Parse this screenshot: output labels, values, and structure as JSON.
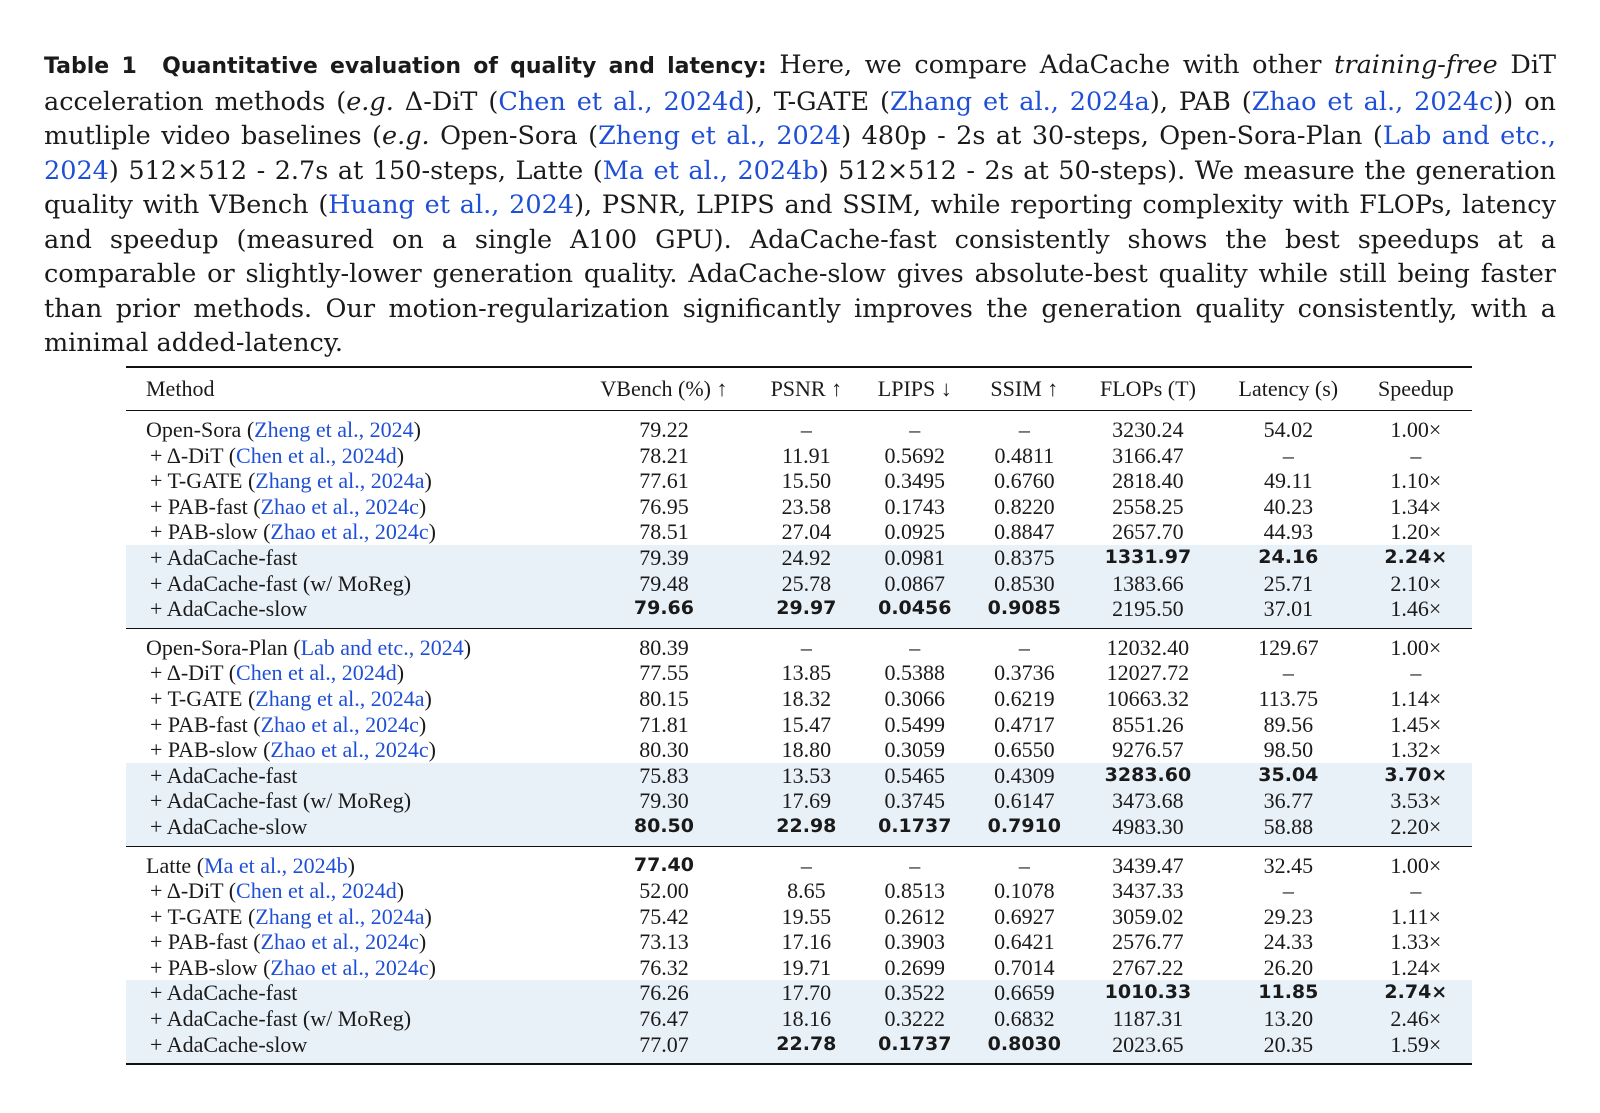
{
  "caption": {
    "label": "Table 1",
    "title": "Quantitative evaluation of quality and latency:",
    "text_1": " Here, we compare AdaCache with other ",
    "italic_1": "training-free",
    "text_2": " DiT acceleration methods (",
    "italic_2": "e.g.",
    "text_3": " Δ-DiT (",
    "cite_1": "Chen et al., 2024d",
    "text_4": "), T-GATE (",
    "cite_2": "Zhang et al., 2024a",
    "text_5": "), PAB (",
    "cite_3": "Zhao et al., 2024c",
    "text_6": ")) on mutliple video baselines (",
    "italic_3": "e.g.",
    "text_7": " Open-Sora (",
    "cite_4": "Zheng et al., 2024",
    "text_8": ") 480p - 2s at 30-steps, Open-Sora-Plan (",
    "cite_5": "Lab and etc., 2024",
    "text_9": ") 512×512 - 2.7s at 150-steps, Latte (",
    "cite_6": "Ma et al., 2024b",
    "text_10": ") 512×512 - 2s at 50-steps). We measure the generation quality with VBench (",
    "cite_7": "Huang et al., 2024",
    "text_11": "), PSNR, LPIPS and SSIM, while reporting complexity with FLOPs, latency and speedup (measured on a single A100 GPU). AdaCache-fast consistently shows the best speedups at a comparable or slightly-lower generation quality. AdaCache-slow gives absolute-best quality while still being faster than prior methods. Our motion-regularization significantly improves the generation quality consistently, with a minimal added-latency."
  },
  "table": {
    "headers": [
      "Method",
      "VBench (%) ↑",
      "PSNR ↑",
      "LPIPS ↓",
      "SSIM ↑",
      "FLOPs (T)",
      "Latency (s)",
      "Speedup"
    ],
    "groups": [
      {
        "rows": [
          {
            "name": "Open-Sora",
            "cite": "Zheng et al., 2024",
            "vbench": "79.22",
            "psnr": "–",
            "lpips": "–",
            "ssim": "–",
            "flops": "3230.24",
            "latency": "54.02",
            "speedup": "1.00×"
          },
          {
            "name": "+ Δ-DiT",
            "cite": "Chen et al., 2024d",
            "vbench": "78.21",
            "psnr": "11.91",
            "lpips": "0.5692",
            "ssim": "0.4811",
            "flops": "3166.47",
            "latency": "–",
            "speedup": "–"
          },
          {
            "name": "+ T-GATE",
            "cite": "Zhang et al., 2024a",
            "vbench": "77.61",
            "psnr": "15.50",
            "lpips": "0.3495",
            "ssim": "0.6760",
            "flops": "2818.40",
            "latency": "49.11",
            "speedup": "1.10×"
          },
          {
            "name": "+ PAB-fast",
            "cite": "Zhao et al., 2024c",
            "vbench": "76.95",
            "psnr": "23.58",
            "lpips": "0.1743",
            "ssim": "0.8220",
            "flops": "2558.25",
            "latency": "40.23",
            "speedup": "1.34×"
          },
          {
            "name": "+ PAB-slow",
            "cite": "Zhao et al., 2024c",
            "vbench": "78.51",
            "psnr": "27.04",
            "lpips": "0.0925",
            "ssim": "0.8847",
            "flops": "2657.70",
            "latency": "44.93",
            "speedup": "1.20×"
          },
          {
            "name": "+ AdaCache-fast",
            "vbench": "79.39",
            "psnr": "24.92",
            "lpips": "0.0981",
            "ssim": "0.8375",
            "flops": "1331.97",
            "latency": "24.16",
            "speedup": "2.24×"
          },
          {
            "name": "+ AdaCache-fast (w/ MoReg)",
            "vbench": "79.48",
            "psnr": "25.78",
            "lpips": "0.0867",
            "ssim": "0.8530",
            "flops": "1383.66",
            "latency": "25.71",
            "speedup": "2.10×"
          },
          {
            "name": "+ AdaCache-slow",
            "vbench": "79.66",
            "psnr": "29.97",
            "lpips": "0.0456",
            "ssim": "0.9085",
            "flops": "2195.50",
            "latency": "37.01",
            "speedup": "1.46×"
          }
        ]
      },
      {
        "rows": [
          {
            "name": "Open-Sora-Plan",
            "cite": "Lab and etc., 2024",
            "vbench": "80.39",
            "psnr": "–",
            "lpips": "–",
            "ssim": "–",
            "flops": "12032.40",
            "latency": "129.67",
            "speedup": "1.00×"
          },
          {
            "name": "+ Δ-DiT",
            "cite": "Chen et al., 2024d",
            "vbench": "77.55",
            "psnr": "13.85",
            "lpips": "0.5388",
            "ssim": "0.3736",
            "flops": "12027.72",
            "latency": "–",
            "speedup": "–"
          },
          {
            "name": "+ T-GATE",
            "cite": "Zhang et al., 2024a",
            "vbench": "80.15",
            "psnr": "18.32",
            "lpips": "0.3066",
            "ssim": "0.6219",
            "flops": "10663.32",
            "latency": "113.75",
            "speedup": "1.14×"
          },
          {
            "name": "+ PAB-fast",
            "cite": "Zhao et al., 2024c",
            "vbench": "71.81",
            "psnr": "15.47",
            "lpips": "0.5499",
            "ssim": "0.4717",
            "flops": "8551.26",
            "latency": "89.56",
            "speedup": "1.45×"
          },
          {
            "name": "+ PAB-slow",
            "cite": "Zhao et al., 2024c",
            "vbench": "80.30",
            "psnr": "18.80",
            "lpips": "0.3059",
            "ssim": "0.6550",
            "flops": "9276.57",
            "latency": "98.50",
            "speedup": "1.32×"
          },
          {
            "name": "+ AdaCache-fast",
            "vbench": "75.83",
            "psnr": "13.53",
            "lpips": "0.5465",
            "ssim": "0.4309",
            "flops": "3283.60",
            "latency": "35.04",
            "speedup": "3.70×"
          },
          {
            "name": "+ AdaCache-fast (w/ MoReg)",
            "vbench": "79.30",
            "psnr": "17.69",
            "lpips": "0.3745",
            "ssim": "0.6147",
            "flops": "3473.68",
            "latency": "36.77",
            "speedup": "3.53×"
          },
          {
            "name": "+ AdaCache-slow",
            "vbench": "80.50",
            "psnr": "22.98",
            "lpips": "0.1737",
            "ssim": "0.7910",
            "flops": "4983.30",
            "latency": "58.88",
            "speedup": "2.20×"
          }
        ]
      },
      {
        "rows": [
          {
            "name": "Latte",
            "cite": "Ma et al., 2024b",
            "vbench": "77.40",
            "psnr": "–",
            "lpips": "–",
            "ssim": "–",
            "flops": "3439.47",
            "latency": "32.45",
            "speedup": "1.00×"
          },
          {
            "name": "+ Δ-DiT",
            "cite": "Chen et al., 2024d",
            "vbench": "52.00",
            "psnr": "8.65",
            "lpips": "0.8513",
            "ssim": "0.1078",
            "flops": "3437.33",
            "latency": "–",
            "speedup": "–"
          },
          {
            "name": "+ T-GATE",
            "cite": "Zhang et al., 2024a",
            "vbench": "75.42",
            "psnr": "19.55",
            "lpips": "0.2612",
            "ssim": "0.6927",
            "flops": "3059.02",
            "latency": "29.23",
            "speedup": "1.11×"
          },
          {
            "name": "+ PAB-fast",
            "cite": "Zhao et al., 2024c",
            "vbench": "73.13",
            "psnr": "17.16",
            "lpips": "0.3903",
            "ssim": "0.6421",
            "flops": "2576.77",
            "latency": "24.33",
            "speedup": "1.33×"
          },
          {
            "name": "+ PAB-slow",
            "cite": "Zhao et al., 2024c",
            "vbench": "76.32",
            "psnr": "19.71",
            "lpips": "0.2699",
            "ssim": "0.7014",
            "flops": "2767.22",
            "latency": "26.20",
            "speedup": "1.24×"
          },
          {
            "name": "+ AdaCache-fast",
            "vbench": "76.26",
            "psnr": "17.70",
            "lpips": "0.3522",
            "ssim": "0.6659",
            "flops": "1010.33",
            "latency": "11.85",
            "speedup": "2.74×"
          },
          {
            "name": "+ AdaCache-fast (w/ MoReg)",
            "vbench": "76.47",
            "psnr": "18.16",
            "lpips": "0.3222",
            "ssim": "0.6832",
            "flops": "1187.31",
            "latency": "13.20",
            "speedup": "2.46×"
          },
          {
            "name": "+ AdaCache-slow",
            "vbench": "77.07",
            "psnr": "22.78",
            "lpips": "0.1737",
            "ssim": "0.8030",
            "flops": "2023.65",
            "latency": "20.35",
            "speedup": "1.59×"
          }
        ]
      }
    ]
  },
  "style": {
    "citation_color": "#1f4fd6",
    "highlight_row_color": "#e8f0f8"
  }
}
